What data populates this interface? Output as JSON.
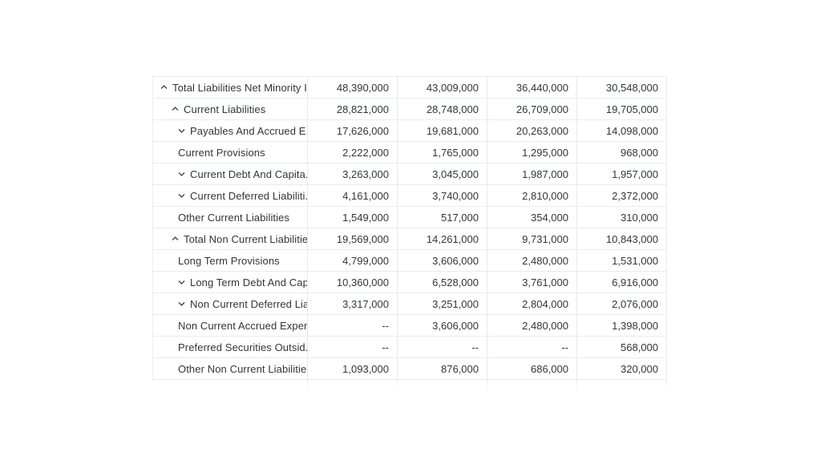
{
  "app": {
    "description": "Financial statement table fragment (liabilities section) with expandable tree rows"
  },
  "colors": {
    "background": "#ffffff",
    "text": "#31353b",
    "grid_border": "#e9ebee",
    "column_divider": "#e6e8ec",
    "chevron": "#3a3f46"
  },
  "table": {
    "value_columns": 4,
    "empty_value_display": "--",
    "rows": [
      {
        "label": "Total Liabilities Net Minority I...",
        "indent": 1,
        "chevron": "up",
        "values": [
          "48,390,000",
          "43,009,000",
          "36,440,000",
          "30,548,000"
        ]
      },
      {
        "label": "Current Liabilities",
        "indent": 2,
        "chevron": "up",
        "values": [
          "28,821,000",
          "28,748,000",
          "26,709,000",
          "19,705,000"
        ]
      },
      {
        "label": "Payables And Accrued E...",
        "indent": 3,
        "chevron": "down",
        "values": [
          "17,626,000",
          "19,681,000",
          "20,263,000",
          "14,098,000"
        ]
      },
      {
        "label": "Current Provisions",
        "indent": 3,
        "chevron": null,
        "values": [
          "2,222,000",
          "1,765,000",
          "1,295,000",
          "968,000"
        ]
      },
      {
        "label": "Current Debt And Capita...",
        "indent": 3,
        "chevron": "down",
        "values": [
          "3,263,000",
          "3,045,000",
          "1,987,000",
          "1,957,000"
        ]
      },
      {
        "label": "Current Deferred Liabiliti...",
        "indent": 3,
        "chevron": "down",
        "values": [
          "4,161,000",
          "3,740,000",
          "2,810,000",
          "2,372,000"
        ]
      },
      {
        "label": "Other Current Liabilities",
        "indent": 3,
        "chevron": null,
        "values": [
          "1,549,000",
          "517,000",
          "354,000",
          "310,000"
        ]
      },
      {
        "label": "Total Non Current Liabilitie...",
        "indent": 2,
        "chevron": "up",
        "values": [
          "19,569,000",
          "14,261,000",
          "9,731,000",
          "10,843,000"
        ]
      },
      {
        "label": "Long Term Provisions",
        "indent": 3,
        "chevron": null,
        "values": [
          "4,799,000",
          "3,606,000",
          "2,480,000",
          "1,531,000"
        ]
      },
      {
        "label": "Long Term Debt And Cap...",
        "indent": 3,
        "chevron": "down",
        "values": [
          "10,360,000",
          "6,528,000",
          "3,761,000",
          "6,916,000"
        ]
      },
      {
        "label": "Non Current Deferred Lia...",
        "indent": 3,
        "chevron": "down",
        "values": [
          "3,317,000",
          "3,251,000",
          "2,804,000",
          "2,076,000"
        ]
      },
      {
        "label": "Non Current Accrued Expen...",
        "indent": 3,
        "chevron": null,
        "values": [
          "--",
          "3,606,000",
          "2,480,000",
          "1,398,000"
        ]
      },
      {
        "label": "Preferred Securities Outsid...",
        "indent": 3,
        "chevron": null,
        "values": [
          "--",
          "--",
          "--",
          "568,000"
        ]
      },
      {
        "label": "Other Non Current Liabilities",
        "indent": 3,
        "chevron": null,
        "values": [
          "1,093,000",
          "876,000",
          "686,000",
          "320,000"
        ]
      }
    ]
  }
}
